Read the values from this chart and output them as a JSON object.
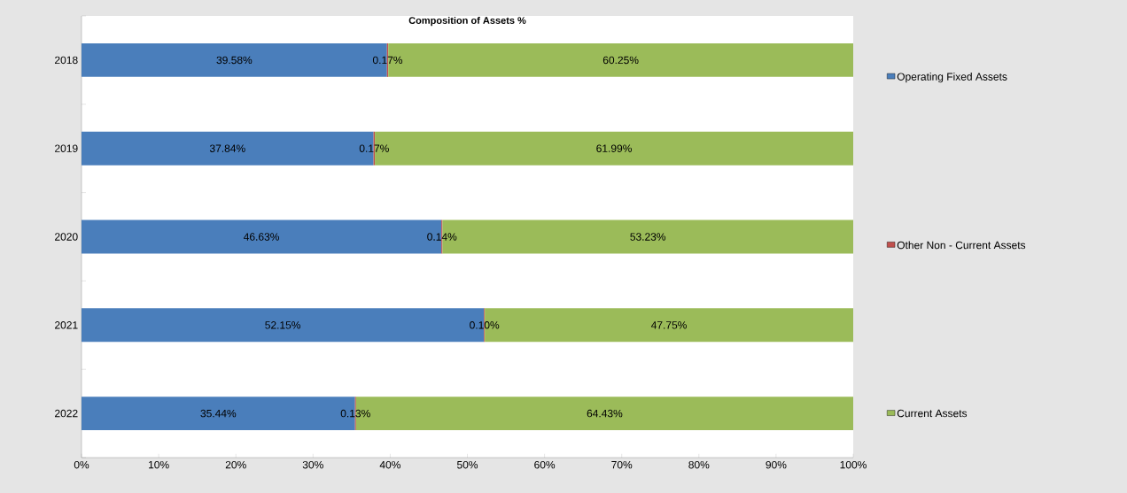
{
  "chart_data": {
    "type": "bar",
    "orientation": "horizontal",
    "stacked": true,
    "title": "Composition of Assets %",
    "categories": [
      "2018",
      "2019",
      "2020",
      "2021",
      "2022"
    ],
    "series": [
      {
        "name": "Operating Fixed Assets",
        "color": "#4a7ebb",
        "values": [
          39.58,
          37.84,
          46.63,
          52.15,
          35.44
        ],
        "value_labels": [
          "39.58%",
          "37.84%",
          "46.63%",
          "52.15%",
          "35.44%"
        ]
      },
      {
        "name": "Other Non - Current Assets",
        "color": "#c0504d",
        "values": [
          0.17,
          0.17,
          0.14,
          0.1,
          0.13
        ],
        "value_labels": [
          "0.17%",
          "0.17%",
          "0.14%",
          "0.10%",
          "0.13%"
        ]
      },
      {
        "name": "Current Assets",
        "color": "#9bbb59",
        "values": [
          60.25,
          61.99,
          53.23,
          47.75,
          64.43
        ],
        "value_labels": [
          "60.25%",
          "61.99%",
          "53.23%",
          "47.75%",
          "64.43%"
        ]
      }
    ],
    "xlim": [
      0,
      100
    ],
    "xticks": [
      {
        "value": 0,
        "label": "0%"
      },
      {
        "value": 10,
        "label": "10%"
      },
      {
        "value": 20,
        "label": "20%"
      },
      {
        "value": 30,
        "label": "30%"
      },
      {
        "value": 40,
        "label": "40%"
      },
      {
        "value": 50,
        "label": "50%"
      },
      {
        "value": 60,
        "label": "60%"
      },
      {
        "value": 70,
        "label": "70%"
      },
      {
        "value": 80,
        "label": "80%"
      },
      {
        "value": 90,
        "label": "90%"
      },
      {
        "value": 100,
        "label": "100%"
      }
    ],
    "legend": "right"
  }
}
